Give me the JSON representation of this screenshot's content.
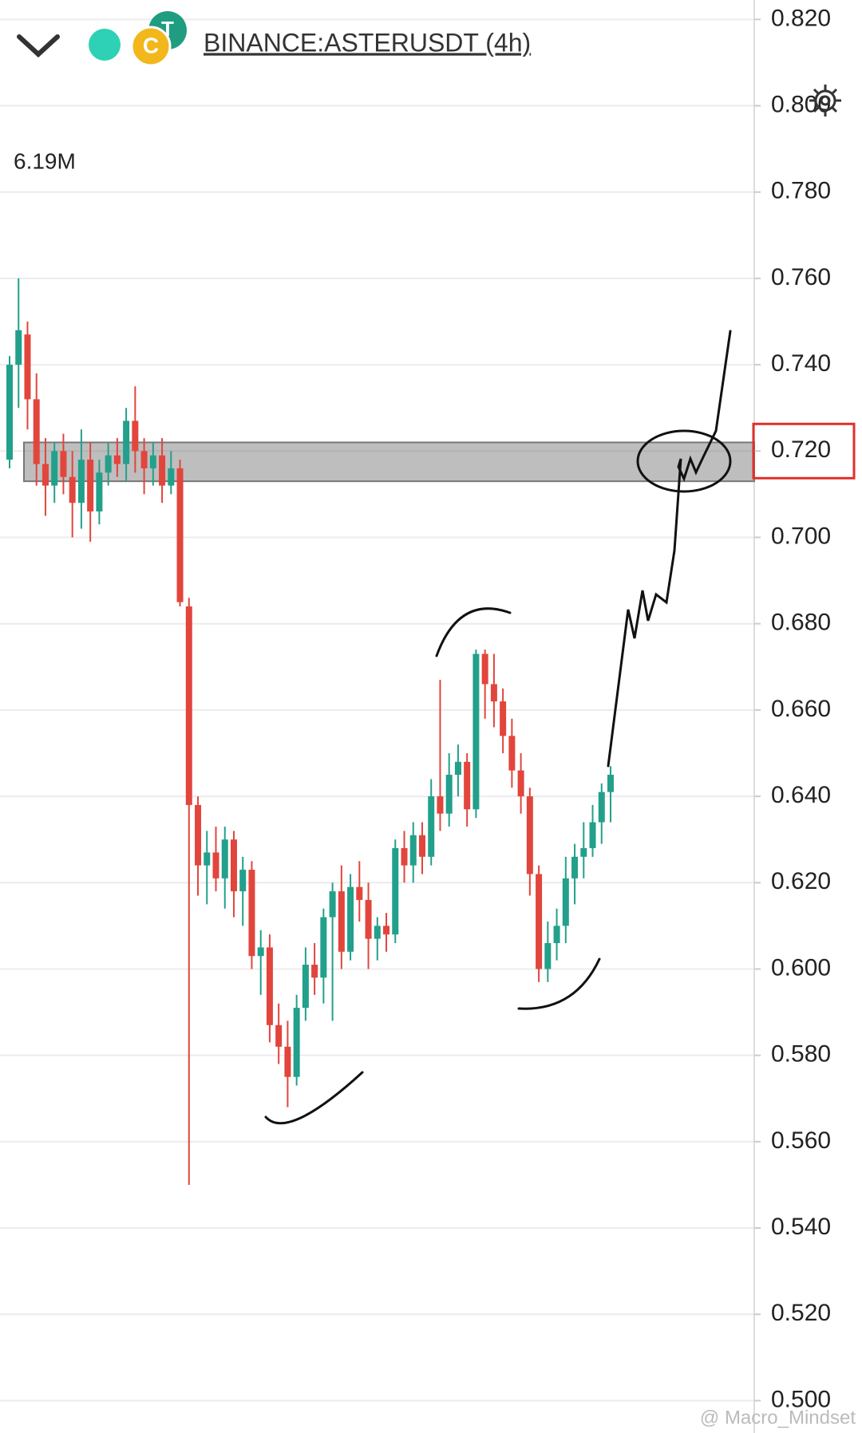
{
  "chart_data": {
    "type": "candlestick",
    "title": "BINANCE:ASTERUSDT (4h)",
    "volume_label": "6.19M",
    "watermark": "@ Macro_Mindset",
    "colors": {
      "up": "#22a08b",
      "down": "#e2453c"
    },
    "ylim": [
      0.4925,
      0.8245
    ],
    "yticks": [
      {
        "value": 0.82,
        "label": "0.820"
      },
      {
        "value": 0.8,
        "label": "0.800"
      },
      {
        "value": 0.78,
        "label": "0.780"
      },
      {
        "value": 0.76,
        "label": "0.760"
      },
      {
        "value": 0.74,
        "label": "0.740"
      },
      {
        "value": 0.72,
        "label": "0.720"
      },
      {
        "value": 0.7,
        "label": "0.700"
      },
      {
        "value": 0.68,
        "label": "0.680"
      },
      {
        "value": 0.66,
        "label": "0.660"
      },
      {
        "value": 0.64,
        "label": "0.640"
      },
      {
        "value": 0.62,
        "label": "0.620"
      },
      {
        "value": 0.6,
        "label": "0.600"
      },
      {
        "value": 0.58,
        "label": "0.580"
      },
      {
        "value": 0.56,
        "label": "0.560"
      },
      {
        "value": 0.54,
        "label": "0.540"
      },
      {
        "value": 0.52,
        "label": "0.520"
      },
      {
        "value": 0.5,
        "label": "0.500"
      }
    ],
    "grid": true,
    "current_price": 0.72,
    "zone": [
      0.713,
      0.722
    ],
    "open": [
      0.718,
      0.74,
      0.747,
      0.732,
      0.717,
      0.712,
      0.72,
      0.714,
      0.708,
      0.718,
      0.706,
      0.715,
      0.719,
      0.717,
      0.727,
      0.72,
      0.716,
      0.719,
      0.712,
      0.716,
      0.684,
      0.638,
      0.624,
      0.627,
      0.621,
      0.63,
      0.618,
      0.623,
      0.603,
      0.605,
      0.587,
      0.582,
      0.575,
      0.591,
      0.601,
      0.598,
      0.612,
      0.618,
      0.604,
      0.619,
      0.616,
      0.607,
      0.61,
      0.608,
      0.628,
      0.624,
      0.631,
      0.626,
      0.64,
      0.636,
      0.645,
      0.648,
      0.637,
      0.673,
      0.666,
      0.662,
      0.654,
      0.646,
      0.64,
      0.622,
      0.6,
      0.606,
      0.61,
      0.621,
      0.626,
      0.628,
      0.634,
      0.641
    ],
    "high": [
      0.742,
      0.76,
      0.75,
      0.738,
      0.723,
      0.722,
      0.724,
      0.72,
      0.725,
      0.722,
      0.718,
      0.722,
      0.723,
      0.73,
      0.735,
      0.723,
      0.722,
      0.723,
      0.72,
      0.718,
      0.686,
      0.64,
      0.632,
      0.633,
      0.633,
      0.632,
      0.626,
      0.625,
      0.609,
      0.608,
      0.592,
      0.588,
      0.594,
      0.605,
      0.606,
      0.614,
      0.62,
      0.624,
      0.622,
      0.625,
      0.62,
      0.612,
      0.613,
      0.63,
      0.632,
      0.634,
      0.634,
      0.644,
      0.667,
      0.65,
      0.652,
      0.65,
      0.674,
      0.674,
      0.673,
      0.665,
      0.658,
      0.65,
      0.642,
      0.624,
      0.611,
      0.614,
      0.626,
      0.629,
      0.634,
      0.638,
      0.643,
      0.647
    ],
    "low": [
      0.716,
      0.73,
      0.725,
      0.712,
      0.705,
      0.708,
      0.71,
      0.7,
      0.702,
      0.699,
      0.703,
      0.712,
      0.714,
      0.713,
      0.715,
      0.71,
      0.712,
      0.708,
      0.71,
      0.684,
      0.55,
      0.617,
      0.615,
      0.618,
      0.614,
      0.612,
      0.61,
      0.6,
      0.594,
      0.583,
      0.578,
      0.568,
      0.573,
      0.588,
      0.594,
      0.592,
      0.588,
      0.6,
      0.602,
      0.611,
      0.6,
      0.602,
      0.604,
      0.606,
      0.62,
      0.62,
      0.622,
      0.624,
      0.632,
      0.633,
      0.64,
      0.633,
      0.635,
      0.658,
      0.656,
      0.65,
      0.642,
      0.636,
      0.617,
      0.597,
      0.597,
      0.602,
      0.606,
      0.615,
      0.621,
      0.626,
      0.629,
      0.634
    ],
    "close": [
      0.74,
      0.748,
      0.732,
      0.717,
      0.712,
      0.72,
      0.714,
      0.708,
      0.718,
      0.706,
      0.715,
      0.719,
      0.717,
      0.727,
      0.72,
      0.716,
      0.719,
      0.712,
      0.716,
      0.685,
      0.638,
      0.624,
      0.627,
      0.621,
      0.63,
      0.618,
      0.623,
      0.603,
      0.605,
      0.587,
      0.582,
      0.575,
      0.591,
      0.601,
      0.598,
      0.612,
      0.618,
      0.604,
      0.619,
      0.616,
      0.607,
      0.61,
      0.608,
      0.628,
      0.624,
      0.631,
      0.626,
      0.64,
      0.636,
      0.645,
      0.648,
      0.637,
      0.673,
      0.666,
      0.662,
      0.654,
      0.646,
      0.64,
      0.622,
      0.6,
      0.606,
      0.61,
      0.621,
      0.626,
      0.628,
      0.634,
      0.641,
      0.645
    ]
  }
}
